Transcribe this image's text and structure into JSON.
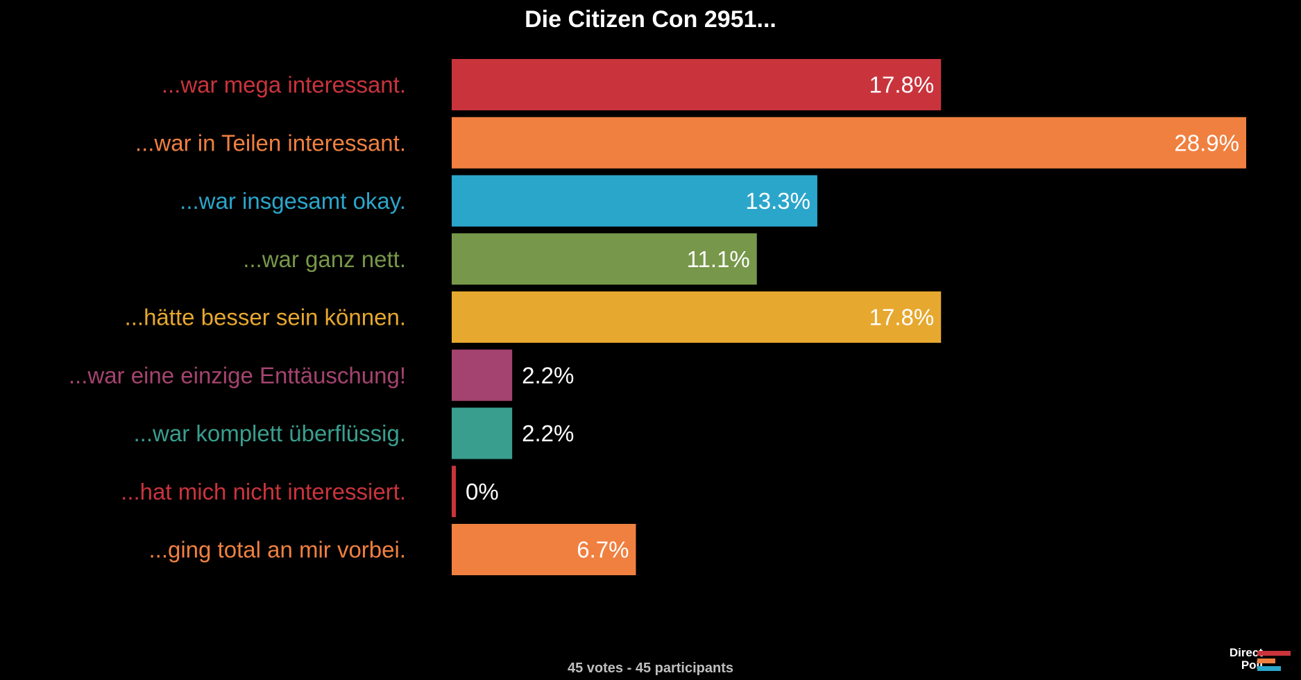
{
  "chart_data": {
    "type": "bar",
    "orientation": "horizontal",
    "title": "Die Citizen Con 2951...",
    "categories": [
      "...war mega interessant.",
      "...war in Teilen interessant.",
      "...war insgesamt okay.",
      "...war ganz nett.",
      "...hätte besser sein können.",
      "...war eine einzige Enttäuschung!",
      "...war komplett überflüssig.",
      "...hat mich nicht interessiert.",
      "...ging total an mir vorbei."
    ],
    "values": [
      17.8,
      28.9,
      13.3,
      11.1,
      17.8,
      2.2,
      2.2,
      0,
      6.7
    ],
    "value_labels": [
      "17.8%",
      "28.9%",
      "13.3%",
      "11.1%",
      "17.8%",
      "2.2%",
      "2.2%",
      "0%",
      "6.7%"
    ],
    "unit": "%",
    "colors": [
      "#c9343c",
      "#f08040",
      "#2ba6cb",
      "#77974a",
      "#e6a82e",
      "#a4436f",
      "#3a9e8f",
      "#c9343c",
      "#f08040"
    ],
    "xlim": [
      0,
      28.9
    ],
    "grid": false,
    "legend": "none"
  },
  "footer": {
    "text": "45 votes - 45 participants"
  },
  "logo": {
    "line1": "Direct",
    "line2": "Poll",
    "colors": [
      "#c9343c",
      "#f08040",
      "#2ba6cb"
    ]
  },
  "colors": {
    "background": "#000000",
    "title": "#ffffff",
    "value_text": "#ffffff",
    "footer_text": "#bfbfbf"
  }
}
